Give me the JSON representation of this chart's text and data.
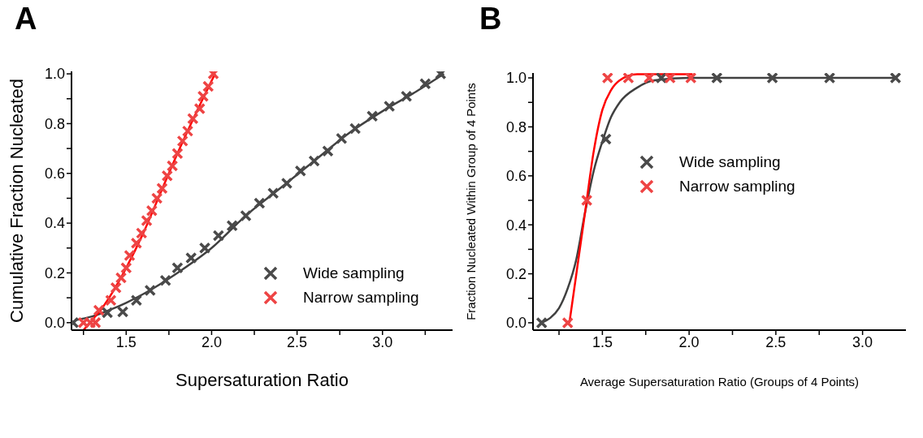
{
  "chart_data": [
    {
      "type": "scatter",
      "title": "A",
      "xlabel": "Supersaturation Ratio",
      "ylabel": "Cumulative Fraction Nucleated",
      "xlim": [
        1.18,
        3.41
      ],
      "ylim": [
        -0.03,
        1.01
      ],
      "xticks": [
        {
          "value": 1.25,
          "label": null
        },
        {
          "value": 1.5,
          "label": "1.5"
        },
        {
          "value": 1.75,
          "label": null
        },
        {
          "value": 2,
          "label": "2.0"
        },
        {
          "value": 2.25,
          "label": null
        },
        {
          "value": 2.5,
          "label": "2.5"
        },
        {
          "value": 2.75,
          "label": null
        },
        {
          "value": 3,
          "label": "3.0"
        },
        {
          "value": 3.25,
          "label": null
        }
      ],
      "yticks": [
        {
          "value": 0,
          "label": "0.0"
        },
        {
          "value": 0.1,
          "label": null
        },
        {
          "value": 0.2,
          "label": "0.2"
        },
        {
          "value": 0.3,
          "label": null
        },
        {
          "value": 0.4,
          "label": "0.4"
        },
        {
          "value": 0.5,
          "label": null
        },
        {
          "value": 0.6,
          "label": "0.6"
        },
        {
          "value": 0.7,
          "label": null
        },
        {
          "value": 0.8,
          "label": "0.8"
        },
        {
          "value": 0.9,
          "label": null
        },
        {
          "value": 1,
          "label": "1.0"
        }
      ],
      "legend": "bottom right",
      "marker": "cross",
      "series": [
        {
          "name": "Wide sampling",
          "color": "#4a4a4a",
          "x": [
            1.19,
            1.39,
            1.48,
            1.56,
            1.64,
            1.73,
            1.8,
            1.88,
            1.96,
            2.04,
            2.12,
            2.2,
            2.28,
            2.36,
            2.44,
            2.52,
            2.6,
            2.68,
            2.76,
            2.84,
            2.94,
            3.04,
            3.14,
            3.25,
            3.34
          ],
          "values": [
            0,
            0.04,
            0.043,
            0.09,
            0.13,
            0.17,
            0.22,
            0.26,
            0.3,
            0.35,
            0.39,
            0.43,
            0.48,
            0.52,
            0.56,
            0.61,
            0.65,
            0.69,
            0.74,
            0.78,
            0.83,
            0.87,
            0.91,
            0.96,
            1.0
          ]
        },
        {
          "name": "Narrow sampling",
          "color": "#ee4444",
          "x": [
            1.25,
            1.29,
            1.32,
            1.34,
            1.41,
            1.44,
            1.47,
            1.5,
            1.52,
            1.56,
            1.59,
            1.62,
            1.65,
            1.68,
            1.71,
            1.74,
            1.77,
            1.8,
            1.83,
            1.86,
            1.89,
            1.93,
            1.95,
            1.98,
            2.01
          ],
          "values": [
            0,
            0,
            0,
            0.05,
            0.09,
            0.14,
            0.18,
            0.22,
            0.27,
            0.32,
            0.36,
            0.41,
            0.45,
            0.5,
            0.54,
            0.59,
            0.63,
            0.68,
            0.73,
            0.77,
            0.82,
            0.86,
            0.91,
            0.95,
            1.0
          ]
        },
        {
          "type": "line",
          "marker": "none",
          "color": "#404040",
          "x": [
            1.2,
            1.3,
            1.4,
            1.5,
            1.6,
            1.8,
            2.0,
            2.2,
            2.4,
            2.6,
            2.8,
            3.0,
            3.2,
            3.36
          ],
          "values": [
            0.01,
            0.025,
            0.05,
            0.08,
            0.115,
            0.2,
            0.3,
            0.43,
            0.54,
            0.65,
            0.76,
            0.85,
            0.93,
            1.0
          ]
        },
        {
          "type": "line",
          "marker": "none",
          "color": "#ff0000",
          "x": [
            1.25,
            1.3,
            1.35,
            1.4,
            1.5,
            1.6,
            1.7,
            1.8,
            1.9,
            2.02
          ],
          "values": [
            -0.03,
            0.01,
            0.05,
            0.1,
            0.22,
            0.36,
            0.52,
            0.68,
            0.83,
            1.0
          ]
        }
      ]
    },
    {
      "type": "scatter",
      "title": "B",
      "xlabel": "Average Supersaturation Ratio (Groups of 4 Points)",
      "ylabel": "Fraction Nucleated Within Group of 4 Points",
      "xlim": [
        1.1,
        3.25
      ],
      "ylim": [
        -0.03,
        1.02
      ],
      "xticks": [
        {
          "value": 1.25,
          "label": null
        },
        {
          "value": 1.5,
          "label": "1.5"
        },
        {
          "value": 1.75,
          "label": null
        },
        {
          "value": 2,
          "label": "2.0"
        },
        {
          "value": 2.25,
          "label": null
        },
        {
          "value": 2.5,
          "label": "2.5"
        },
        {
          "value": 2.75,
          "label": null
        },
        {
          "value": 3,
          "label": "3.0"
        }
      ],
      "yticks": [
        {
          "value": 0,
          "label": "0.0"
        },
        {
          "value": 0.1,
          "label": null
        },
        {
          "value": 0.2,
          "label": "0.2"
        },
        {
          "value": 0.3,
          "label": null
        },
        {
          "value": 0.4,
          "label": "0.4"
        },
        {
          "value": 0.5,
          "label": null
        },
        {
          "value": 0.6,
          "label": "0.6"
        },
        {
          "value": 0.7,
          "label": null
        },
        {
          "value": 0.8,
          "label": "0.8"
        },
        {
          "value": 0.9,
          "label": null
        },
        {
          "value": 1,
          "label": "1.0"
        }
      ],
      "legend": "right",
      "marker": "cross",
      "series": [
        {
          "name": "Wide sampling",
          "color": "#4a4a4a",
          "x": [
            1.15,
            1.52,
            1.84,
            2.16,
            2.48,
            2.81,
            3.19
          ],
          "values": [
            0,
            0.75,
            1,
            1,
            1,
            1,
            1
          ]
        },
        {
          "name": "Narrow sampling",
          "color": "#ee4444",
          "x": [
            1.3,
            1.41,
            1.53,
            1.65,
            1.77,
            1.89,
            2.01
          ],
          "values": [
            0,
            0.5,
            1,
            1,
            1,
            1,
            1
          ]
        },
        {
          "type": "line",
          "marker": "none",
          "color": "#404040",
          "x": [
            1.15,
            1.2,
            1.25,
            1.3,
            1.35,
            1.4,
            1.45,
            1.5,
            1.55,
            1.6,
            1.7,
            1.8,
            2.0,
            3.2
          ],
          "values": [
            0,
            0.02,
            0.06,
            0.14,
            0.26,
            0.45,
            0.62,
            0.74,
            0.84,
            0.9,
            0.96,
            0.99,
            1.0,
            1.0
          ]
        },
        {
          "type": "line",
          "marker": "none",
          "color": "#ff0000",
          "x": [
            1.31,
            1.35,
            1.4,
            1.45,
            1.5,
            1.55,
            1.6,
            1.7,
            2.02
          ],
          "values": [
            0,
            0.2,
            0.45,
            0.7,
            0.87,
            0.95,
            0.99,
            1.015,
            1.015
          ]
        }
      ]
    }
  ]
}
